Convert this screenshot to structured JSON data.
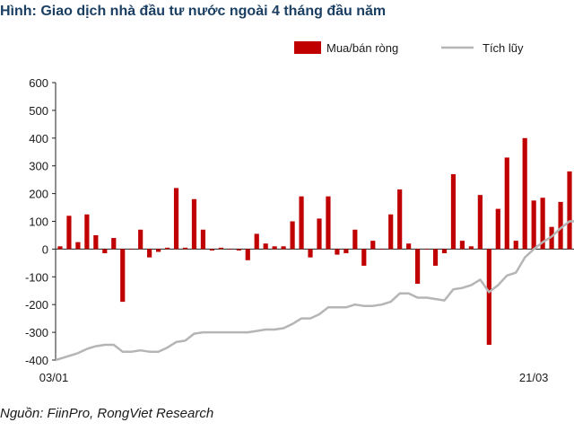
{
  "title": "Hình: Giao dịch nhà đầu tư nước ngoài 4 tháng đầu năm",
  "source": "Nguồn: FiinPro, RongViet Research",
  "colors": {
    "bar": "#c00000",
    "line": "#b5b5b5",
    "text": "#1a1a1a",
    "title": "#1b3f63"
  },
  "chart_data": {
    "type": "bar",
    "legend": {
      "placement": "top-right",
      "entries": [
        "Mua/bán ròng",
        "Tích lũy"
      ]
    },
    "ylim": [
      -400,
      600
    ],
    "yticks": [
      600,
      500,
      400,
      300,
      200,
      100,
      0,
      -100,
      -200,
      -300,
      -400
    ],
    "xticks": [
      "03/01",
      "21/03"
    ],
    "xtick_index": [
      0,
      53
    ],
    "grid": false,
    "series": [
      {
        "name": "Mua/bán ròng",
        "type": "bar",
        "values": [
          10,
          120,
          25,
          125,
          50,
          -15,
          40,
          -190,
          0,
          70,
          -30,
          -10,
          5,
          220,
          5,
          180,
          70,
          -5,
          5,
          0,
          -5,
          -40,
          55,
          20,
          10,
          10,
          100,
          190,
          -30,
          110,
          190,
          -20,
          -15,
          70,
          -60,
          30,
          0,
          125,
          215,
          20,
          -125,
          0,
          -60,
          -15,
          270,
          30,
          10,
          195,
          -345,
          145,
          330,
          30,
          400,
          175,
          185,
          80,
          170,
          280
        ]
      },
      {
        "name": "Tích lũy",
        "type": "line",
        "values": [
          -400,
          -385,
          -375,
          -360,
          -350,
          -345,
          -345,
          -370,
          -370,
          -365,
          -370,
          -370,
          -355,
          -335,
          -330,
          -305,
          -300,
          -300,
          -300,
          -300,
          -300,
          -300,
          -295,
          -290,
          -290,
          -285,
          -270,
          -250,
          -250,
          -235,
          -210,
          -210,
          -210,
          -200,
          -205,
          -205,
          -200,
          -190,
          -160,
          -160,
          -175,
          -175,
          -180,
          -185,
          -145,
          -140,
          -130,
          -110,
          -155,
          -130,
          -95,
          -85,
          -30,
          0,
          25,
          45,
          75,
          100
        ]
      }
    ]
  }
}
